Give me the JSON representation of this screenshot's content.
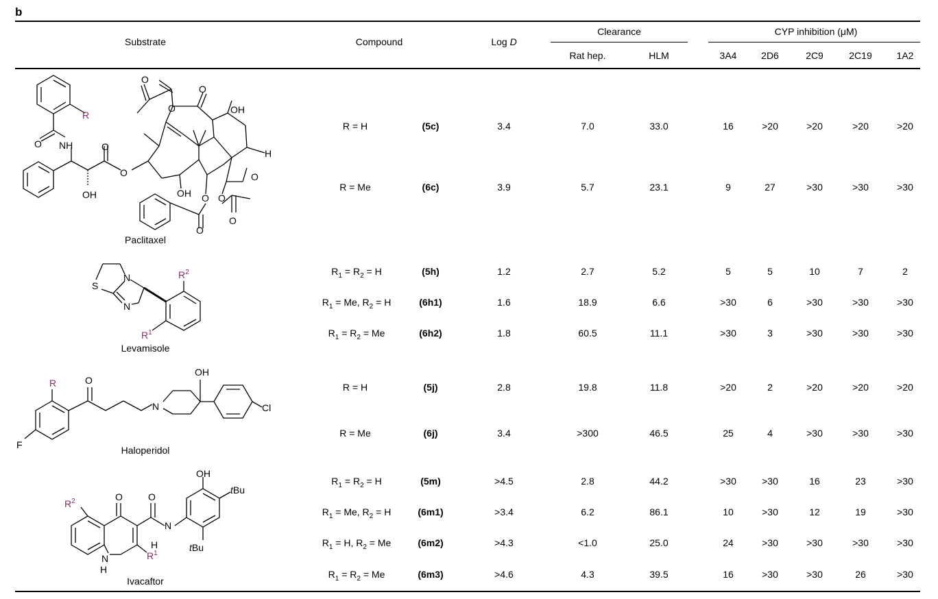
{
  "panel_label": "b",
  "headers": {
    "substrate": "Substrate",
    "compound": "Compound",
    "logd_prefix": "Log ",
    "logd_italic": "D",
    "clearance": "Clearance",
    "rat_hep": "Rat hep.",
    "hlm": "HLM",
    "cyp": "CYP inhibition (μM)",
    "cyp_cols": [
      "3A4",
      "2D6",
      "2C9",
      "2C19",
      "1A2"
    ]
  },
  "substrate_names": [
    "Paclitaxel",
    "Levamisole",
    "Haloperidol",
    "Ivacaftor"
  ],
  "structure_labels": {
    "R": "R",
    "R1": "R",
    "R1_sup": "1",
    "R2": "R",
    "R2_sup": "2",
    "O": "O",
    "OH": "OH",
    "NH": "NH",
    "N": "N",
    "S": "S",
    "H": "H",
    "F": "F",
    "Cl": "Cl",
    "tBu_t": "t",
    "tBu_rest": "Bu"
  },
  "rows": [
    {
      "cond": "R = H",
      "id": "(5c)",
      "logd": "3.4",
      "rat": "7.0",
      "hlm": "33.0",
      "cyp": [
        "16",
        ">20",
        ">20",
        ">20",
        ">20"
      ]
    },
    {
      "cond": "R = Me",
      "id": "(6c)",
      "logd": "3.9",
      "rat": "5.7",
      "hlm": "23.1",
      "cyp": [
        "9",
        "27",
        ">30",
        ">30",
        ">30"
      ]
    },
    {
      "c1": "R",
      "s1": "1",
      "m1": " = R",
      "s2": "2",
      "e": " = H",
      "id": "(5h)",
      "logd": "1.2",
      "rat": "2.7",
      "hlm": "5.2",
      "cyp": [
        "5",
        "5",
        "10",
        "7",
        "2"
      ]
    },
    {
      "c1": "R",
      "s1": "1",
      "m1": " = Me, R",
      "s2": "2",
      "e": " = H",
      "id": "(6h1)",
      "logd": "1.6",
      "rat": "18.9",
      "hlm": "6.6",
      "cyp": [
        ">30",
        "6",
        ">30",
        ">30",
        ">30"
      ]
    },
    {
      "c1": "R",
      "s1": "1",
      "m1": " = R",
      "s2": "2",
      "e": " = Me",
      "id": "(6h2)",
      "logd": "1.8",
      "rat": "60.5",
      "hlm": "11.1",
      "cyp": [
        ">30",
        "3",
        ">30",
        ">30",
        ">30"
      ]
    },
    {
      "cond": "R = H",
      "id": "(5j)",
      "logd": "2.8",
      "rat": "19.8",
      "hlm": "11.8",
      "cyp": [
        ">20",
        "2",
        ">20",
        ">20",
        ">20"
      ]
    },
    {
      "cond": "R = Me",
      "id": "(6j)",
      "logd": "3.4",
      "rat": ">300",
      "hlm": "46.5",
      "cyp": [
        "25",
        "4",
        ">30",
        ">30",
        ">30"
      ]
    },
    {
      "c1": "R",
      "s1": "1",
      "m1": " = R",
      "s2": "2",
      "e": " = H",
      "id": "(5m)",
      "logd": ">4.5",
      "rat": "2.8",
      "hlm": "44.2",
      "cyp": [
        ">30",
        ">30",
        "16",
        "23",
        ">30"
      ]
    },
    {
      "c1": "R",
      "s1": "1",
      "m1": " = Me, R",
      "s2": "2",
      "e": " = H",
      "id": "(6m1)",
      "logd": ">3.4",
      "rat": "6.2",
      "hlm": "86.1",
      "cyp": [
        "10",
        ">30",
        "12",
        "19",
        ">30"
      ]
    },
    {
      "c1": "R",
      "s1": "1",
      "m1": " = H, R",
      "s2": "2",
      "e": " = Me",
      "id": "(6m2)",
      "logd": ">4.3",
      "rat": "<1.0",
      "hlm": "25.0",
      "cyp": [
        "24",
        ">30",
        ">30",
        ">30",
        ">30"
      ]
    },
    {
      "c1": "R",
      "s1": "1",
      "m1": " = R",
      "s2": "2",
      "e": " = Me",
      "id": "(6m3)",
      "logd": ">4.6",
      "rat": "4.3",
      "hlm": "39.5",
      "cyp": [
        "16",
        ">30",
        ">30",
        "26",
        ">30"
      ]
    }
  ],
  "colors": {
    "r_group": "#8b2a6b",
    "text": "#000000"
  }
}
